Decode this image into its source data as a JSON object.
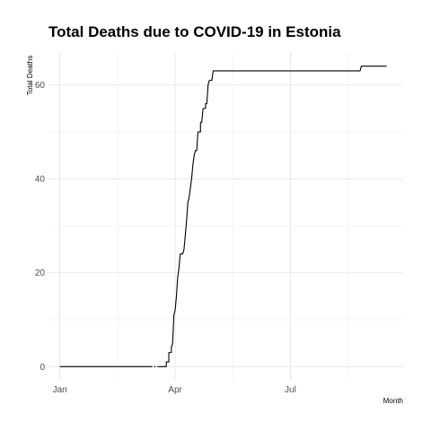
{
  "chart_data": {
    "type": "line",
    "title": "Total Deaths due to COVID-19 in Estonia",
    "xlabel": "Month",
    "ylabel": "Total Deaths",
    "x_tick_labels": [
      "Jan",
      "Apr",
      "Jul"
    ],
    "x_tick_dates": [
      "2020-01-01",
      "2020-04-01",
      "2020-07-01"
    ],
    "y_ticks": [
      0,
      20,
      40,
      60
    ],
    "xlim": [
      "2019-12-23",
      "2020-09-28"
    ],
    "ylim": [
      -3,
      67
    ],
    "grid": true,
    "series": [
      {
        "color": "#000000",
        "segments": [
          [
            [
              "2020-01-01",
              0
            ],
            [
              "2020-03-14",
              0
            ]
          ],
          [
            [
              "2020-03-16",
              0
            ],
            [
              "2020-03-16",
              0
            ]
          ],
          [
            [
              "2020-03-18",
              0
            ],
            [
              "2020-03-25",
              0
            ],
            [
              "2020-03-25",
              1
            ],
            [
              "2020-03-27",
              1
            ],
            [
              "2020-03-27",
              3
            ],
            [
              "2020-03-29",
              3
            ],
            [
              "2020-03-29",
              4
            ],
            [
              "2020-03-30",
              5
            ],
            [
              "2020-03-31",
              11
            ],
            [
              "2020-04-01",
              12
            ],
            [
              "2020-04-02",
              15
            ],
            [
              "2020-04-03",
              19
            ],
            [
              "2020-04-04",
              21
            ],
            [
              "2020-04-05",
              24
            ],
            [
              "2020-04-07",
              24
            ],
            [
              "2020-04-08",
              25
            ],
            [
              "2020-04-09",
              28
            ],
            [
              "2020-04-10",
              31
            ],
            [
              "2020-04-11",
              35
            ],
            [
              "2020-04-12",
              36
            ],
            [
              "2020-04-13",
              38
            ],
            [
              "2020-04-14",
              40
            ],
            [
              "2020-04-15",
              43
            ],
            [
              "2020-04-16",
              45
            ],
            [
              "2020-04-17",
              46
            ],
            [
              "2020-04-18",
              46
            ],
            [
              "2020-04-19",
              50
            ],
            [
              "2020-04-21",
              50
            ],
            [
              "2020-04-21",
              52
            ],
            [
              "2020-04-22",
              52
            ],
            [
              "2020-04-23",
              55
            ],
            [
              "2020-04-25",
              55
            ],
            [
              "2020-04-25",
              56
            ],
            [
              "2020-04-26",
              56
            ],
            [
              "2020-04-27",
              60
            ],
            [
              "2020-04-28",
              61
            ],
            [
              "2020-04-30",
              61
            ],
            [
              "2020-05-01",
              63
            ],
            [
              "2020-08-25",
              63
            ],
            [
              "2020-08-26",
              64
            ],
            [
              "2020-09-15",
              64
            ]
          ]
        ]
      }
    ]
  }
}
